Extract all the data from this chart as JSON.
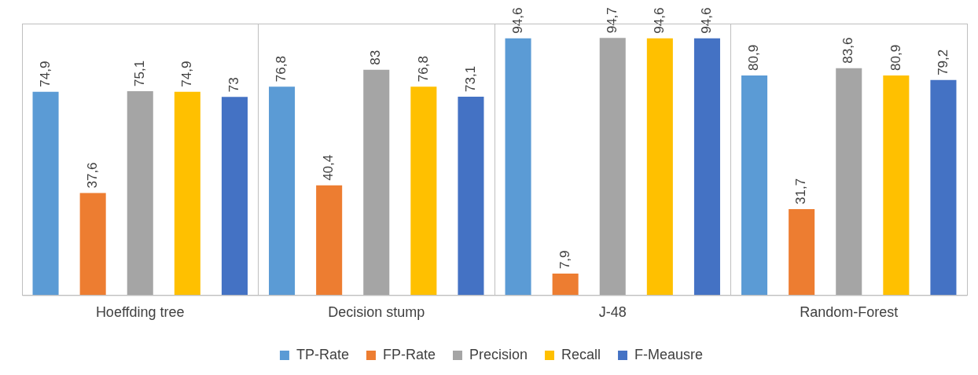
{
  "chart_data": {
    "type": "bar",
    "categories": [
      "Hoeffding tree",
      "Decision stump",
      "J-48",
      "Random-Forest"
    ],
    "series": [
      {
        "name": "TP-Rate",
        "color": "#5b9bd5",
        "values": [
          74.9,
          76.8,
          94.6,
          80.9
        ],
        "value_labels": [
          "74,9",
          "76,8",
          "94,6",
          "80,9"
        ]
      },
      {
        "name": "FP-Rate",
        "color": "#ed7d31",
        "values": [
          37.6,
          40.4,
          7.9,
          31.7
        ],
        "value_labels": [
          "37,6",
          "40,4",
          "7,9",
          "31,7"
        ]
      },
      {
        "name": "Precision",
        "color": "#a5a5a5",
        "values": [
          75.1,
          83,
          94.7,
          83.6
        ],
        "value_labels": [
          "75,1",
          "83",
          "94,7",
          "83,6"
        ]
      },
      {
        "name": "Recall",
        "color": "#ffc000",
        "values": [
          74.9,
          76.8,
          94.6,
          80.9
        ],
        "value_labels": [
          "74,9",
          "76,8",
          "94,6",
          "80,9"
        ]
      },
      {
        "name": "F-Meausre",
        "color": "#4472c4",
        "values": [
          73,
          73.1,
          94.6,
          79.2
        ],
        "value_labels": [
          "73",
          "73,1",
          "94,6",
          "79,2"
        ]
      }
    ],
    "ylim": [
      0,
      100
    ],
    "tick_labels": "x",
    "grid": "x",
    "legend": "bottom"
  }
}
